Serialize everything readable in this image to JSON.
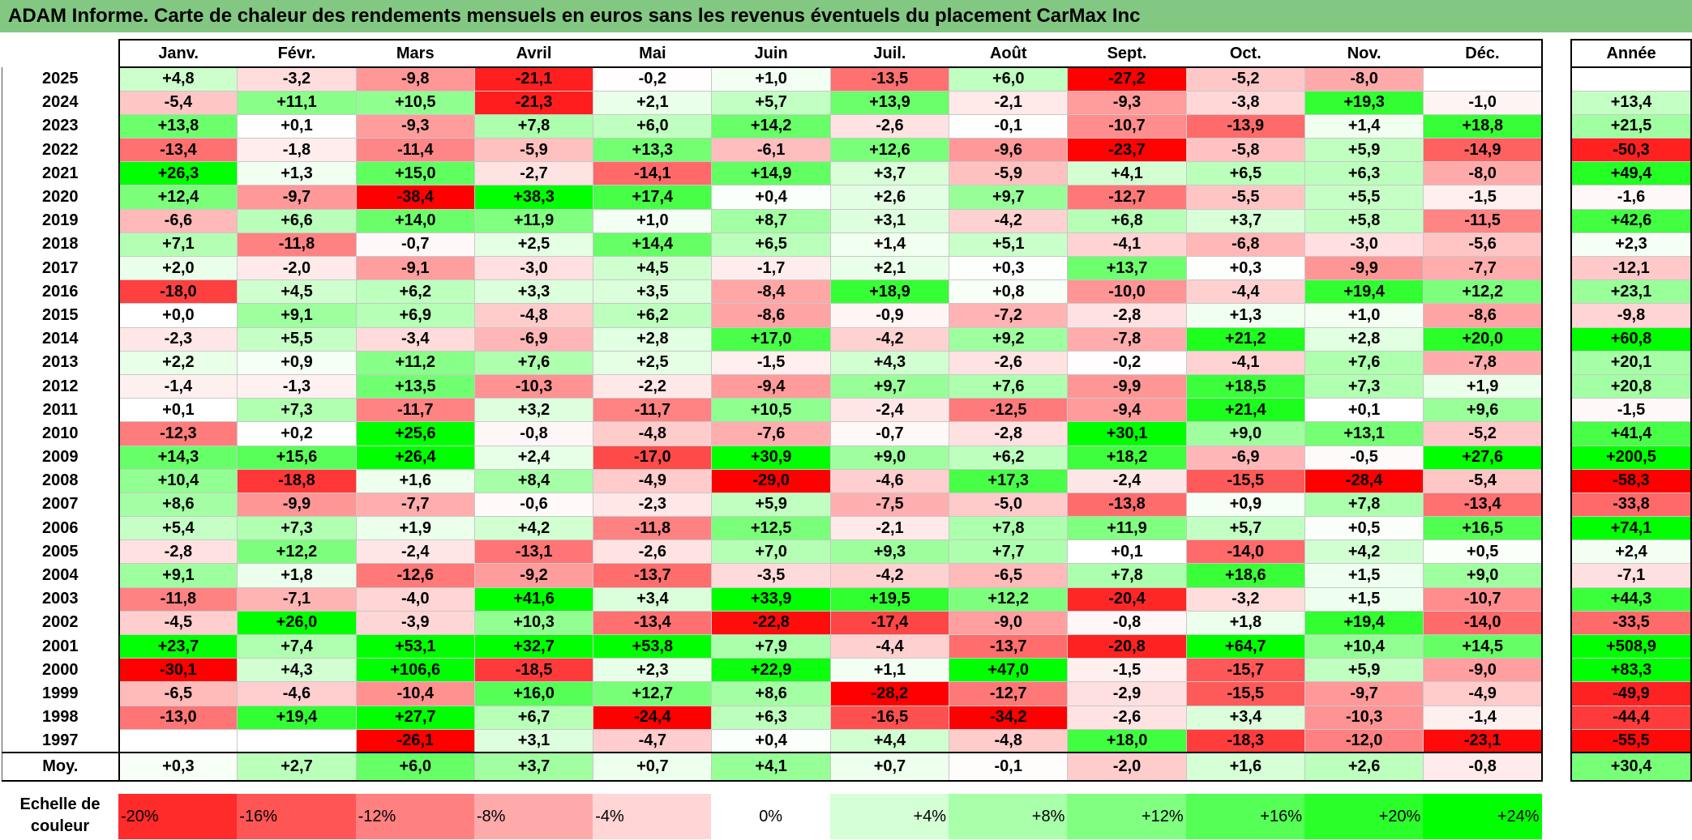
{
  "title": "ADAM Informe. Carte de chaleur des rendements mensuels en euros sans les revenus éventuels du placement CarMax Inc",
  "chart_data": {
    "type": "heatmap",
    "title": "ADAM Informe. Carte de chaleur des rendements mensuels en euros sans les revenus éventuels du placement CarMax Inc",
    "columns": [
      "Janv.",
      "Févr.",
      "Mars",
      "Avril",
      "Mai",
      "Juin",
      "Juil.",
      "Août",
      "Sept.",
      "Oct.",
      "Nov.",
      "Déc."
    ],
    "year_header": "Année",
    "rows": [
      {
        "year": "2025",
        "values": [
          "+4,8",
          "-3,2",
          "-9,8",
          "-21,1",
          "-0,2",
          "+1,0",
          "-13,5",
          "+6,0",
          "-27,2",
          "-5,2",
          "-8,0",
          ""
        ],
        "annual": ""
      },
      {
        "year": "2024",
        "values": [
          "-5,4",
          "+11,1",
          "+10,5",
          "-21,3",
          "+2,1",
          "+5,7",
          "+13,9",
          "-2,1",
          "-9,3",
          "-3,8",
          "+19,3",
          "-1,0"
        ],
        "annual": "+13,4"
      },
      {
        "year": "2023",
        "values": [
          "+13,8",
          "+0,1",
          "-9,3",
          "+7,8",
          "+6,0",
          "+14,2",
          "-2,6",
          "-0,1",
          "-10,7",
          "-13,9",
          "+1,4",
          "+18,8"
        ],
        "annual": "+21,5"
      },
      {
        "year": "2022",
        "values": [
          "-13,4",
          "-1,8",
          "-11,4",
          "-5,9",
          "+13,3",
          "-6,1",
          "+12,6",
          "-9,6",
          "-23,7",
          "-5,8",
          "+5,9",
          "-14,9"
        ],
        "annual": "-50,3"
      },
      {
        "year": "2021",
        "values": [
          "+26,3",
          "+1,3",
          "+15,0",
          "-2,7",
          "-14,1",
          "+14,9",
          "+3,7",
          "-5,9",
          "+4,1",
          "+6,5",
          "+6,3",
          "-8,0"
        ],
        "annual": "+49,4"
      },
      {
        "year": "2020",
        "values": [
          "+12,4",
          "-9,7",
          "-38,4",
          "+38,3",
          "+17,4",
          "+0,4",
          "+2,6",
          "+9,7",
          "-12,7",
          "-5,5",
          "+5,5",
          "-1,5"
        ],
        "annual": "-1,6"
      },
      {
        "year": "2019",
        "values": [
          "-6,6",
          "+6,6",
          "+14,0",
          "+11,9",
          "+1,0",
          "+8,7",
          "+3,1",
          "-4,2",
          "+6,8",
          "+3,7",
          "+5,8",
          "-11,5"
        ],
        "annual": "+42,6"
      },
      {
        "year": "2018",
        "values": [
          "+7,1",
          "-11,8",
          "-0,7",
          "+2,5",
          "+14,4",
          "+6,5",
          "+1,4",
          "+5,1",
          "-4,1",
          "-6,8",
          "-3,0",
          "-5,6"
        ],
        "annual": "+2,3"
      },
      {
        "year": "2017",
        "values": [
          "+2,0",
          "-2,0",
          "-9,1",
          "-3,0",
          "+4,5",
          "-1,7",
          "+2,1",
          "+0,3",
          "+13,7",
          "+0,3",
          "-9,9",
          "-7,7"
        ],
        "annual": "-12,1"
      },
      {
        "year": "2016",
        "values": [
          "-18,0",
          "+4,5",
          "+6,2",
          "+3,3",
          "+3,5",
          "-8,4",
          "+18,9",
          "+0,8",
          "-10,0",
          "-4,4",
          "+19,4",
          "+12,2"
        ],
        "annual": "+23,1"
      },
      {
        "year": "2015",
        "values": [
          "+0,0",
          "+9,1",
          "+6,9",
          "-4,8",
          "+6,2",
          "-8,6",
          "-0,9",
          "-7,2",
          "-2,8",
          "+1,3",
          "+1,0",
          "-8,6"
        ],
        "annual": "-9,8"
      },
      {
        "year": "2014",
        "values": [
          "-2,3",
          "+5,5",
          "-3,4",
          "-6,9",
          "+2,8",
          "+17,0",
          "-4,2",
          "+9,2",
          "-7,8",
          "+21,2",
          "+2,8",
          "+20,0"
        ],
        "annual": "+60,8"
      },
      {
        "year": "2013",
        "values": [
          "+2,2",
          "+0,9",
          "+11,2",
          "+7,6",
          "+2,5",
          "-1,5",
          "+4,3",
          "-2,6",
          "-0,2",
          "-4,1",
          "+7,6",
          "-7,8"
        ],
        "annual": "+20,1"
      },
      {
        "year": "2012",
        "values": [
          "-1,4",
          "-1,3",
          "+13,5",
          "-10,3",
          "-2,2",
          "-9,4",
          "+9,7",
          "+7,6",
          "-9,9",
          "+18,5",
          "+7,3",
          "+1,9"
        ],
        "annual": "+20,8"
      },
      {
        "year": "2011",
        "values": [
          "+0,1",
          "+7,3",
          "-11,7",
          "+3,2",
          "-11,7",
          "+10,5",
          "-2,4",
          "-12,5",
          "-9,4",
          "+21,4",
          "+0,1",
          "+9,6"
        ],
        "annual": "-1,5"
      },
      {
        "year": "2010",
        "values": [
          "-12,3",
          "+0,2",
          "+25,6",
          "-0,8",
          "-4,8",
          "-7,6",
          "-0,7",
          "-2,8",
          "+30,1",
          "+9,0",
          "+13,1",
          "-5,2"
        ],
        "annual": "+41,4"
      },
      {
        "year": "2009",
        "values": [
          "+14,3",
          "+15,6",
          "+26,4",
          "+2,4",
          "-17,0",
          "+30,9",
          "+9,0",
          "+6,2",
          "+18,2",
          "-6,9",
          "-0,5",
          "+27,6"
        ],
        "annual": "+200,5"
      },
      {
        "year": "2008",
        "values": [
          "+10,4",
          "-18,8",
          "+1,6",
          "+8,4",
          "-4,9",
          "-29,0",
          "-4,6",
          "+17,3",
          "-2,4",
          "-15,5",
          "-28,4",
          "-5,4"
        ],
        "annual": "-58,3"
      },
      {
        "year": "2007",
        "values": [
          "+8,6",
          "-9,9",
          "-7,7",
          "-0,6",
          "-2,3",
          "+5,9",
          "-7,5",
          "-5,0",
          "-13,8",
          "+0,9",
          "+7,8",
          "-13,4"
        ],
        "annual": "-33,8"
      },
      {
        "year": "2006",
        "values": [
          "+5,4",
          "+7,3",
          "+1,9",
          "+4,2",
          "-11,8",
          "+12,5",
          "-2,1",
          "+7,8",
          "+11,9",
          "+5,7",
          "+0,5",
          "+16,5"
        ],
        "annual": "+74,1"
      },
      {
        "year": "2005",
        "values": [
          "-2,8",
          "+12,2",
          "-2,4",
          "-13,1",
          "-2,6",
          "+7,0",
          "+9,3",
          "+7,7",
          "+0,1",
          "-14,0",
          "+4,2",
          "+0,5"
        ],
        "annual": "+2,4"
      },
      {
        "year": "2004",
        "values": [
          "+9,1",
          "+1,8",
          "-12,6",
          "-9,2",
          "-13,7",
          "-3,5",
          "-4,2",
          "-6,5",
          "+7,8",
          "+18,6",
          "+1,5",
          "+9,0"
        ],
        "annual": "-7,1"
      },
      {
        "year": "2003",
        "values": [
          "-11,8",
          "-7,1",
          "-4,0",
          "+41,6",
          "+3,4",
          "+33,9",
          "+19,5",
          "+12,2",
          "-20,4",
          "-3,2",
          "+1,5",
          "-10,7"
        ],
        "annual": "+44,3"
      },
      {
        "year": "2002",
        "values": [
          "-4,5",
          "+26,0",
          "-3,9",
          "+10,3",
          "-13,4",
          "-22,8",
          "-17,4",
          "-9,0",
          "-0,8",
          "+1,8",
          "+19,4",
          "-14,0"
        ],
        "annual": "-33,5"
      },
      {
        "year": "2001",
        "values": [
          "+23,7",
          "+7,4",
          "+53,1",
          "+32,7",
          "+53,8",
          "+7,9",
          "-4,4",
          "-13,7",
          "-20,8",
          "+64,7",
          "+10,4",
          "+14,5"
        ],
        "annual": "+508,9"
      },
      {
        "year": "2000",
        "values": [
          "-30,1",
          "+4,3",
          "+106,6",
          "-18,5",
          "+2,3",
          "+22,9",
          "+1,1",
          "+47,0",
          "-1,5",
          "-15,7",
          "+5,9",
          "-9,0"
        ],
        "annual": "+83,3"
      },
      {
        "year": "1999",
        "values": [
          "-6,5",
          "-4,6",
          "-10,4",
          "+16,0",
          "+12,7",
          "+8,6",
          "-28,2",
          "-12,7",
          "-2,9",
          "-15,5",
          "-9,7",
          "-4,9"
        ],
        "annual": "-49,9"
      },
      {
        "year": "1998",
        "values": [
          "-13,0",
          "+19,4",
          "+27,7",
          "+6,7",
          "-24,4",
          "+6,3",
          "-16,5",
          "-34,2",
          "-2,6",
          "+3,4",
          "-10,3",
          "-1,4"
        ],
        "annual": "-44,4"
      },
      {
        "year": "1997",
        "values": [
          "",
          "",
          "-26,1",
          "+3,1",
          "-4,7",
          "+0,4",
          "+4,4",
          "-4,8",
          "+18,0",
          "-18,3",
          "-12,0",
          "-23,1"
        ],
        "annual": "-55,5"
      }
    ],
    "average": {
      "label": "Moy.",
      "values": [
        "+0,3",
        "+2,7",
        "+6,0",
        "+3,7",
        "+0,7",
        "+4,1",
        "+0,7",
        "-0,1",
        "-2,0",
        "+1,6",
        "+2,6",
        "-0,8"
      ],
      "annual": "+30,4"
    },
    "color_scale": {
      "label": "Echelle de couleur",
      "steps": [
        "-20%",
        "-16%",
        "-12%",
        "-8%",
        "-4%",
        "0%",
        "+4%",
        "+8%",
        "+12%",
        "+16%",
        "+20%",
        "+24%"
      ],
      "colors": {
        "negative": "#ff0000",
        "neutral": "#ffffff",
        "positive": "#00ff00"
      }
    }
  }
}
